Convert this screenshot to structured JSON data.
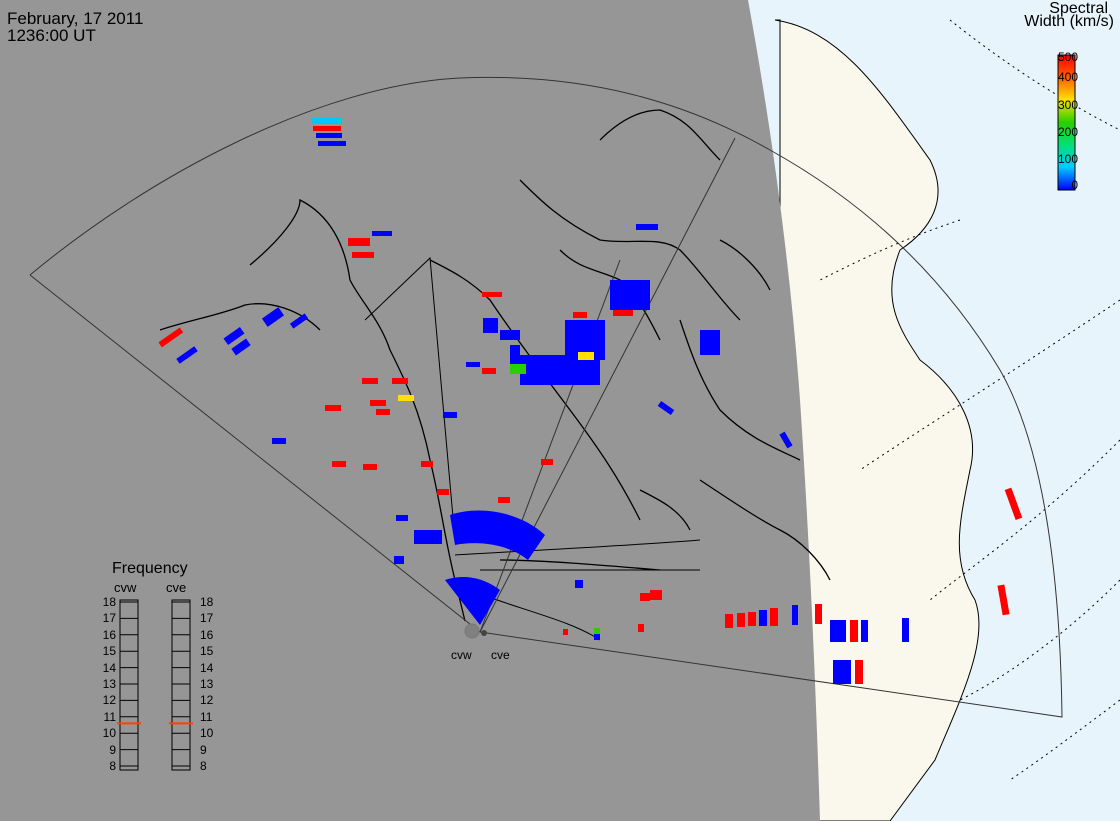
{
  "header": {
    "date": "February, 17 2011",
    "time": "1236:00 UT"
  },
  "colorbar": {
    "title_line1": "Spectral",
    "title_line2": "Width (km/s)",
    "ticks": [
      "500",
      "400",
      "300",
      "200",
      "100",
      "0"
    ],
    "min": 0,
    "max": 500,
    "colors": [
      "#0000ff",
      "#00ccff",
      "#00e07a",
      "#28d000",
      "#ffe000",
      "#ff6000",
      "#ff0000"
    ]
  },
  "frequency_panel": {
    "title": "Frequency",
    "radars": [
      {
        "label": "cvw",
        "current_mhz": 10.6
      },
      {
        "label": "cve",
        "current_mhz": 10.6
      }
    ],
    "ticks": [
      "18",
      "17",
      "16",
      "15",
      "14",
      "13",
      "12",
      "11",
      "10",
      "9",
      "8"
    ],
    "marker_color": "#ff4000"
  },
  "sites": {
    "west": "cvw",
    "east": "cve"
  },
  "map_colors": {
    "night": "#969696",
    "land_day": "#faf8ec",
    "ocean_day": "#e8f4fc"
  }
}
